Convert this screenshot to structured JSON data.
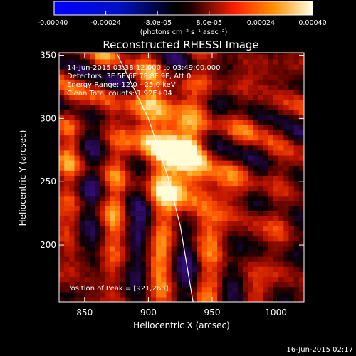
{
  "chart_data": {
    "type": "heatmap",
    "title": "Reconstructed RHESSI Image",
    "xlabel": "Heliocentric X (arcsec)",
    "ylabel": "Heliocentric Y (arcsec)",
    "xlim": [
      830,
      1022
    ],
    "ylim": [
      155,
      352
    ],
    "x_ticks": [
      850,
      900,
      950,
      1000
    ],
    "y_ticks": [
      200,
      250,
      300,
      350
    ],
    "colormap": "rhessi-bluewhite-redhot",
    "colorbar": {
      "range": [
        -0.0004,
        0.0004
      ],
      "tick_values": [
        -0.0004,
        -0.00024,
        -8e-05,
        8e-05,
        0.00024,
        0.0004
      ],
      "tick_labels": [
        "-0.00040",
        "-0.00024",
        "-8.0e-05",
        "8.0e-05",
        "0.00024",
        "0.00040"
      ],
      "units_label": "(photons cm⁻² s⁻¹ asec⁻²)"
    },
    "annotations": [
      "14-Jun-2015 03:38:12.000 to 03:49:00.000",
      "Detectors: 3F 5F 6F 7F 8F 9F, Att 0",
      "Energy Range: 12.0 - 25.0 keV",
      "Clean     Total counts: 1.92E+04"
    ],
    "peak": {
      "label": "Position of Peak = [921,263]",
      "x": 921,
      "y": 263
    },
    "limb": [
      [
        875,
        352
      ],
      [
        900,
        300
      ],
      [
        915,
        255
      ],
      [
        925,
        215
      ],
      [
        935,
        155
      ]
    ]
  },
  "footer": {
    "timestamp": "16-Jun-2015 02:17"
  },
  "colors": {
    "frame": "#ffffff",
    "limb": "#ffffff",
    "background": "#000000"
  }
}
